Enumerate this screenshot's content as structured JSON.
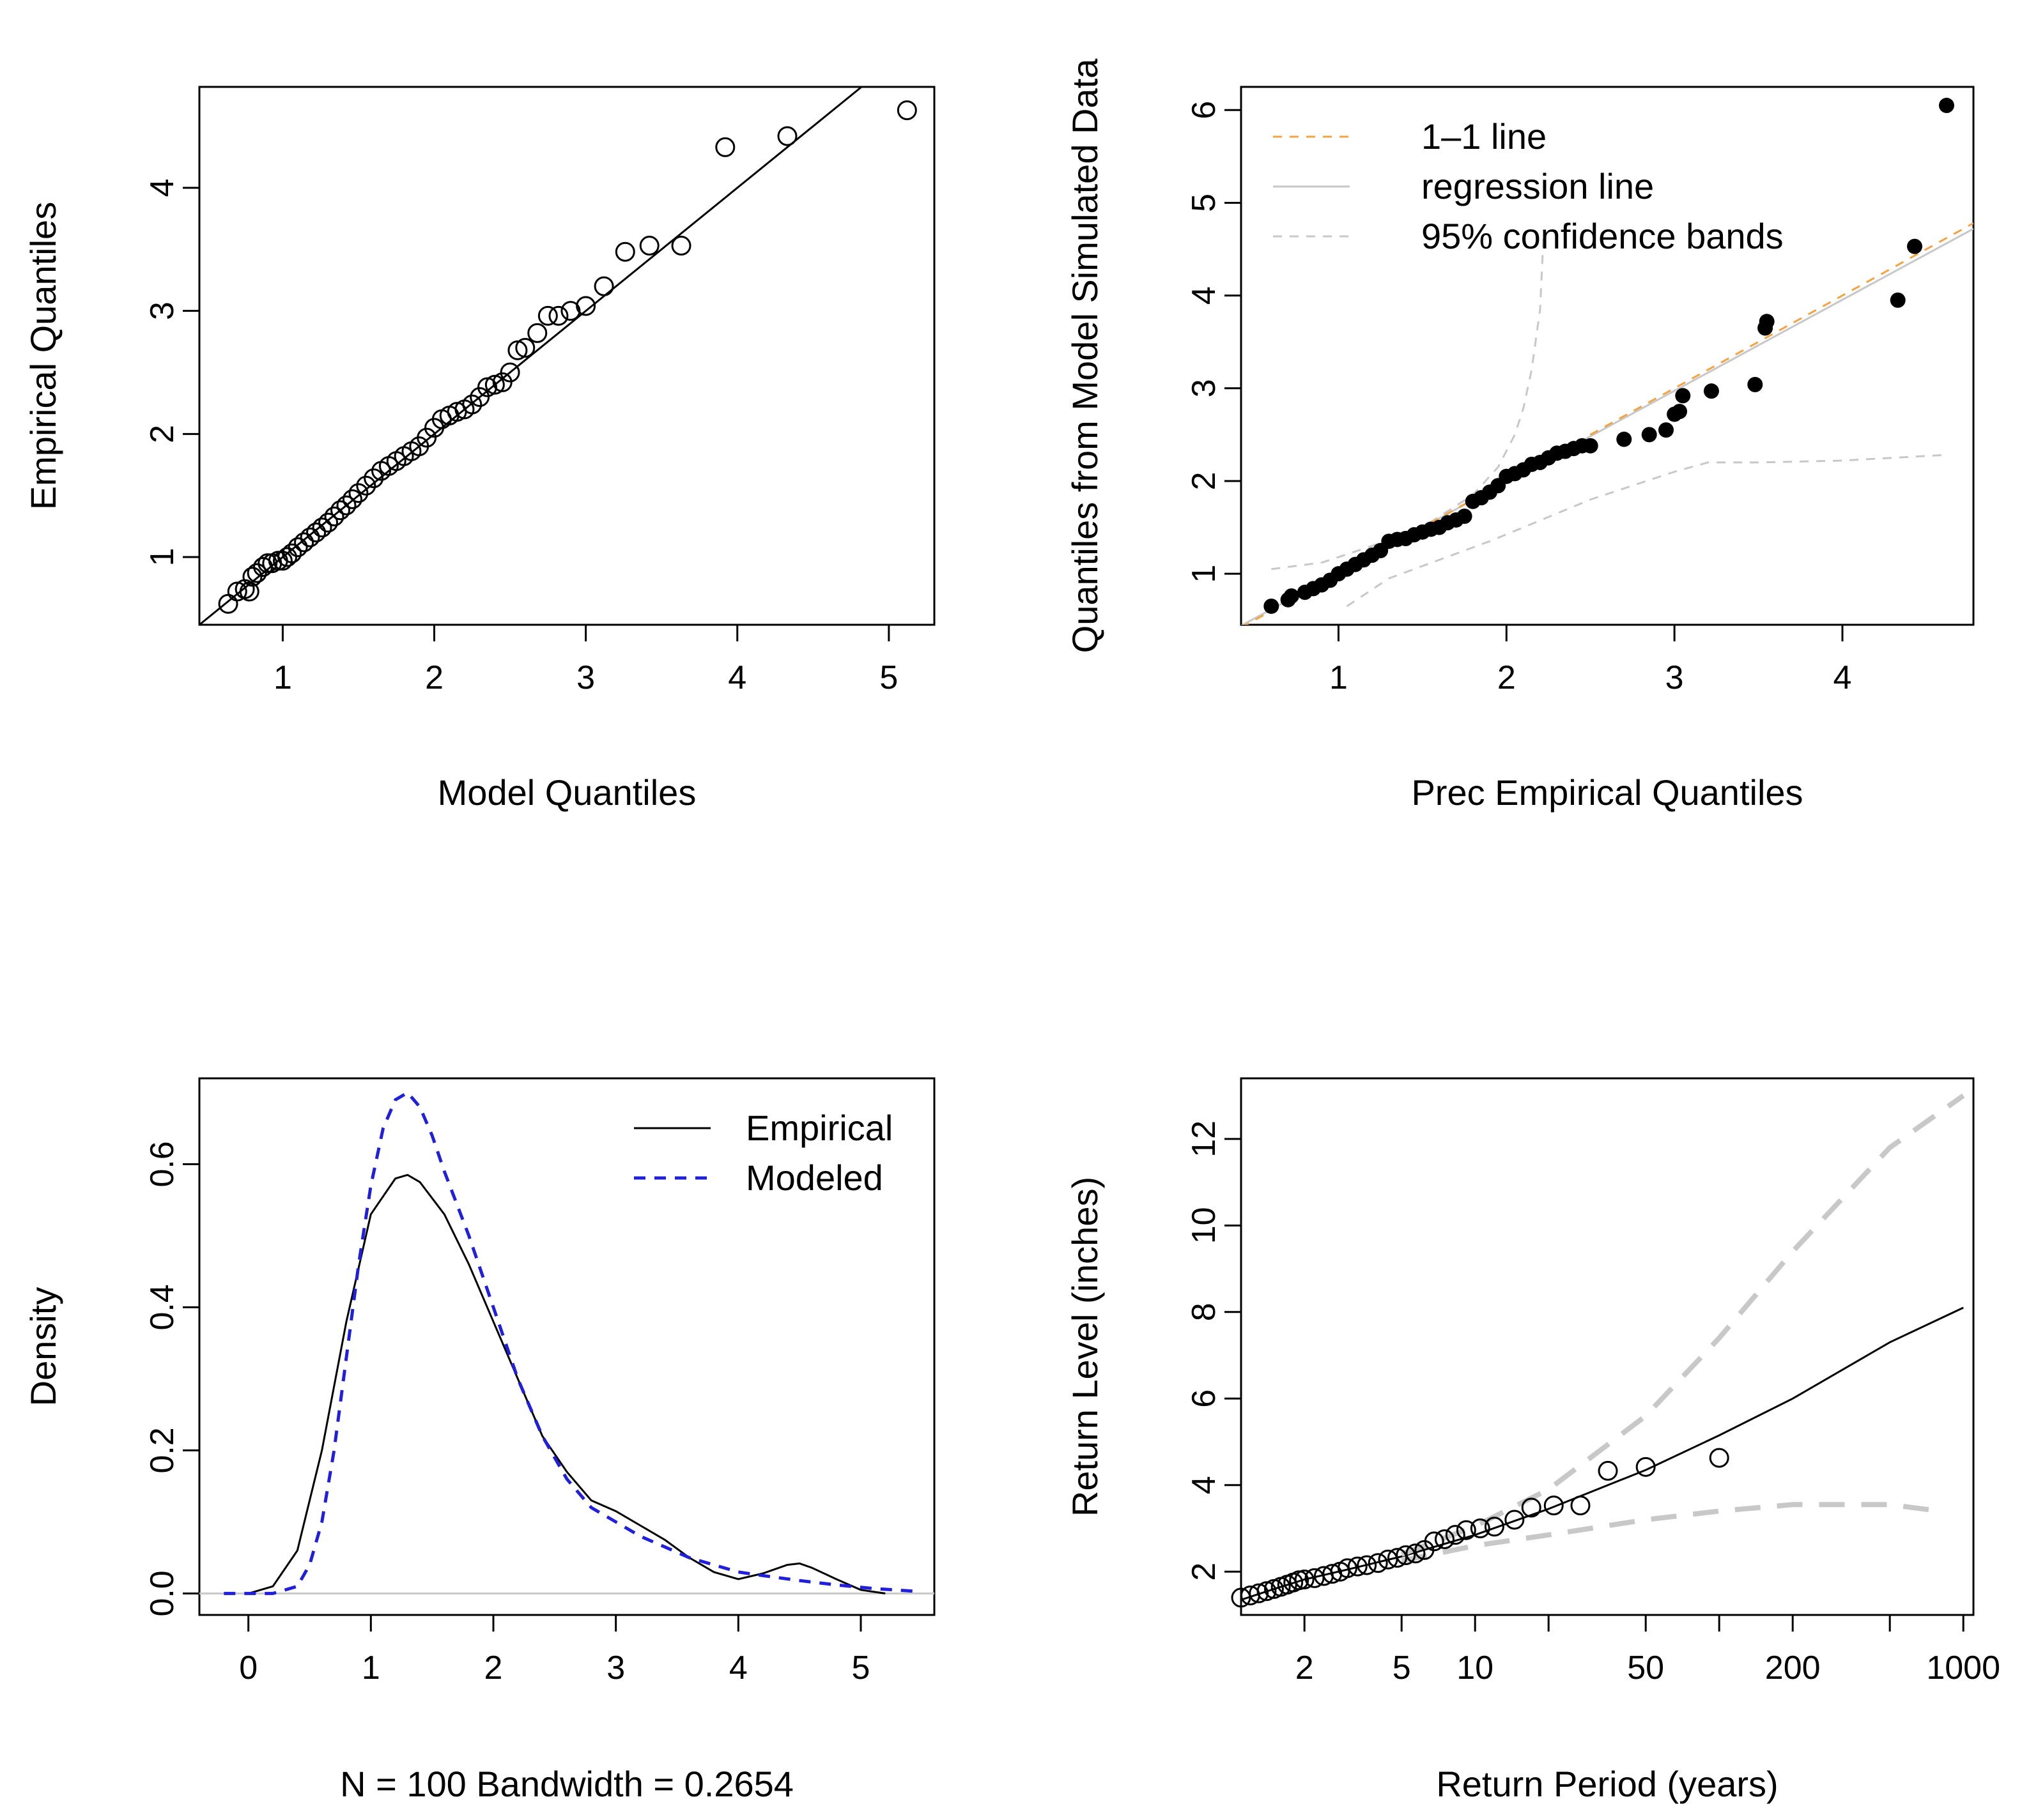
{
  "chart_data": [
    {
      "type": "scatter",
      "xlabel": "Model Quantiles",
      "ylabel": "Empirical Quantiles",
      "xlim": [
        0.45,
        5.3
      ],
      "ylim": [
        0.45,
        4.82
      ],
      "xticks": [
        1,
        2,
        3,
        4,
        5
      ],
      "yticks": [
        1,
        2,
        3,
        4
      ],
      "reference_line": {
        "x": [
          0.45,
          4.82
        ],
        "y": [
          0.45,
          4.82
        ]
      },
      "points": [
        [
          0.64,
          0.62
        ],
        [
          0.7,
          0.72
        ],
        [
          0.75,
          0.74
        ],
        [
          0.78,
          0.72
        ],
        [
          0.8,
          0.84
        ],
        [
          0.83,
          0.87
        ],
        [
          0.87,
          0.92
        ],
        [
          0.9,
          0.95
        ],
        [
          0.93,
          0.95
        ],
        [
          0.97,
          0.97
        ],
        [
          1.0,
          0.97
        ],
        [
          1.03,
          1.0
        ],
        [
          1.06,
          1.03
        ],
        [
          1.1,
          1.08
        ],
        [
          1.14,
          1.12
        ],
        [
          1.18,
          1.16
        ],
        [
          1.22,
          1.2
        ],
        [
          1.26,
          1.24
        ],
        [
          1.3,
          1.28
        ],
        [
          1.34,
          1.33
        ],
        [
          1.38,
          1.38
        ],
        [
          1.42,
          1.42
        ],
        [
          1.46,
          1.47
        ],
        [
          1.5,
          1.52
        ],
        [
          1.55,
          1.58
        ],
        [
          1.6,
          1.64
        ],
        [
          1.65,
          1.7
        ],
        [
          1.7,
          1.74
        ],
        [
          1.75,
          1.78
        ],
        [
          1.8,
          1.82
        ],
        [
          1.85,
          1.86
        ],
        [
          1.9,
          1.9
        ],
        [
          1.95,
          1.97
        ],
        [
          2.0,
          2.05
        ],
        [
          2.05,
          2.12
        ],
        [
          2.1,
          2.15
        ],
        [
          2.15,
          2.18
        ],
        [
          2.2,
          2.2
        ],
        [
          2.25,
          2.24
        ],
        [
          2.3,
          2.3
        ],
        [
          2.35,
          2.38
        ],
        [
          2.4,
          2.4
        ],
        [
          2.45,
          2.42
        ],
        [
          2.5,
          2.5
        ],
        [
          2.55,
          2.68
        ],
        [
          2.6,
          2.7
        ],
        [
          2.68,
          2.82
        ],
        [
          2.75,
          2.96
        ],
        [
          2.82,
          2.96
        ],
        [
          2.9,
          3.0
        ],
        [
          3.0,
          3.04
        ],
        [
          3.12,
          3.2
        ],
        [
          3.26,
          3.48
        ],
        [
          3.42,
          3.53
        ],
        [
          3.63,
          3.53
        ],
        [
          3.92,
          4.33
        ],
        [
          4.33,
          4.42
        ],
        [
          5.12,
          4.63
        ]
      ]
    },
    {
      "type": "scatter",
      "xlabel": "Prec Empirical Quantiles",
      "ylabel": "Quantiles from Model Simulated Data",
      "xlim": [
        0.42,
        4.78
      ],
      "ylim": [
        0.45,
        6.25
      ],
      "xticks": [
        1,
        2,
        3,
        4
      ],
      "yticks": [
        1,
        2,
        3,
        4,
        5,
        6
      ],
      "legend": {
        "position": "top-left",
        "entries": [
          {
            "label": "1–1 line",
            "color": "#f4a340",
            "style": "dashed"
          },
          {
            "label": "regression line",
            "color": "#c8c8c8",
            "style": "solid"
          },
          {
            "label": "95% confidence bands",
            "color": "#c8c8c8",
            "style": "dashed"
          }
        ]
      },
      "one_to_one_line": {
        "x": [
          0.42,
          4.78
        ],
        "y": [
          0.42,
          4.78
        ]
      },
      "regression_line": {
        "x": [
          0.42,
          4.78
        ],
        "y": [
          0.44,
          4.72
        ]
      },
      "upper_band": {
        "x": [
          0.6,
          0.9,
          1.2,
          1.5,
          1.8,
          1.95,
          2.05,
          2.1,
          2.15,
          2.2,
          2.22
        ],
        "y": [
          1.05,
          1.12,
          1.3,
          1.5,
          1.85,
          2.15,
          2.5,
          2.78,
          3.2,
          3.85,
          4.62
        ]
      },
      "lower_band": {
        "x": [
          1.05,
          1.3,
          1.6,
          1.9,
          2.1,
          2.5,
          3.0,
          3.2,
          3.5,
          4.0,
          4.6
        ],
        "y": [
          0.65,
          0.95,
          1.15,
          1.35,
          1.5,
          1.8,
          2.1,
          2.2,
          2.2,
          2.22,
          2.28
        ]
      },
      "points": [
        [
          0.6,
          0.65
        ],
        [
          0.7,
          0.72
        ],
        [
          0.72,
          0.76
        ],
        [
          0.8,
          0.8
        ],
        [
          0.85,
          0.84
        ],
        [
          0.9,
          0.88
        ],
        [
          0.95,
          0.93
        ],
        [
          1.0,
          1.0
        ],
        [
          1.05,
          1.05
        ],
        [
          1.1,
          1.1
        ],
        [
          1.15,
          1.15
        ],
        [
          1.2,
          1.2
        ],
        [
          1.25,
          1.25
        ],
        [
          1.3,
          1.35
        ],
        [
          1.35,
          1.37
        ],
        [
          1.4,
          1.38
        ],
        [
          1.45,
          1.42
        ],
        [
          1.5,
          1.45
        ],
        [
          1.55,
          1.48
        ],
        [
          1.6,
          1.5
        ],
        [
          1.65,
          1.55
        ],
        [
          1.7,
          1.58
        ],
        [
          1.75,
          1.62
        ],
        [
          1.8,
          1.78
        ],
        [
          1.85,
          1.82
        ],
        [
          1.9,
          1.88
        ],
        [
          1.95,
          1.95
        ],
        [
          2.0,
          2.05
        ],
        [
          2.05,
          2.08
        ],
        [
          2.1,
          2.12
        ],
        [
          2.15,
          2.18
        ],
        [
          2.2,
          2.2
        ],
        [
          2.25,
          2.25
        ],
        [
          2.3,
          2.3
        ],
        [
          2.35,
          2.32
        ],
        [
          2.4,
          2.35
        ],
        [
          2.45,
          2.38
        ],
        [
          2.5,
          2.38
        ],
        [
          2.7,
          2.45
        ],
        [
          2.85,
          2.5
        ],
        [
          2.95,
          2.55
        ],
        [
          3.0,
          2.72
        ],
        [
          3.03,
          2.75
        ],
        [
          3.05,
          2.92
        ],
        [
          3.22,
          2.97
        ],
        [
          3.48,
          3.04
        ],
        [
          3.54,
          3.65
        ],
        [
          3.55,
          3.72
        ],
        [
          4.33,
          3.95
        ],
        [
          4.43,
          4.53
        ],
        [
          4.62,
          6.05
        ]
      ]
    },
    {
      "type": "line",
      "xlabel": "N = 100   Bandwidth = 0.2654",
      "ylabel": "Density",
      "xlim": [
        -0.4,
        5.6
      ],
      "ylim": [
        -0.03,
        0.72
      ],
      "xticks": [
        0,
        1,
        2,
        3,
        4,
        5
      ],
      "yticks": [
        "0.0",
        "0.2",
        "0.4",
        "0.6"
      ],
      "legend": {
        "position": "top-right",
        "entries": [
          {
            "label": "Empirical",
            "color": "#000000",
            "style": "solid"
          },
          {
            "label": "Modeled",
            "color": "#1f1fdc",
            "style": "dashed"
          }
        ]
      },
      "series": [
        {
          "name": "Empirical",
          "color": "#000000",
          "x": [
            0.0,
            0.2,
            0.4,
            0.6,
            0.8,
            1.0,
            1.2,
            1.3,
            1.4,
            1.6,
            1.8,
            2.0,
            2.2,
            2.4,
            2.6,
            2.8,
            3.0,
            3.2,
            3.4,
            3.6,
            3.8,
            4.0,
            4.2,
            4.4,
            4.5,
            4.6,
            4.8,
            5.0,
            5.2
          ],
          "y": [
            0.0,
            0.01,
            0.06,
            0.2,
            0.38,
            0.53,
            0.58,
            0.585,
            0.575,
            0.53,
            0.46,
            0.38,
            0.3,
            0.22,
            0.17,
            0.13,
            0.115,
            0.095,
            0.075,
            0.05,
            0.03,
            0.02,
            0.028,
            0.04,
            0.042,
            0.036,
            0.02,
            0.005,
            0.0
          ]
        },
        {
          "name": "Modeled",
          "color": "#1f1fdc",
          "x": [
            -0.2,
            0.2,
            0.4,
            0.5,
            0.6,
            0.7,
            0.8,
            0.9,
            1.0,
            1.1,
            1.2,
            1.3,
            1.4,
            1.5,
            1.6,
            1.8,
            2.0,
            2.2,
            2.4,
            2.6,
            2.8,
            3.0,
            3.2,
            3.4,
            3.6,
            3.8,
            4.0,
            4.2,
            4.5,
            4.8,
            5.1,
            5.45
          ],
          "y": [
            0.0,
            0.0,
            0.01,
            0.04,
            0.1,
            0.2,
            0.33,
            0.46,
            0.57,
            0.65,
            0.69,
            0.7,
            0.68,
            0.64,
            0.59,
            0.5,
            0.4,
            0.3,
            0.22,
            0.16,
            0.12,
            0.1,
            0.08,
            0.065,
            0.05,
            0.04,
            0.03,
            0.025,
            0.018,
            0.012,
            0.007,
            0.003
          ]
        }
      ]
    },
    {
      "type": "line",
      "xlabel": "Return Period (years)",
      "ylabel": "Return Level (inches)",
      "x_scale": "log",
      "xlim": [
        1.1,
        1100
      ],
      "ylim": [
        1.0,
        13.4
      ],
      "xticks": [
        2,
        5,
        10,
        50,
        200,
        1000
      ],
      "minor_xticks": [
        20,
        100,
        500
      ],
      "yticks": [
        2,
        4,
        6,
        8,
        10,
        12
      ],
      "series": [
        {
          "name": "",
          "color": "#000000",
          "style": "solid",
          "x": [
            1.1,
            1.5,
            2,
            3,
            5,
            10,
            20,
            50,
            100,
            200,
            500,
            1000
          ],
          "y": [
            1.35,
            1.6,
            1.82,
            2.05,
            2.35,
            2.85,
            3.45,
            4.35,
            5.15,
            6.0,
            7.3,
            8.1
          ]
        },
        {
          "name": "",
          "color": "#c8c8c8",
          "style": "dashed",
          "x": [
            5,
            10,
            20,
            50,
            100,
            200,
            500,
            1000
          ],
          "y": [
            2.4,
            3.05,
            3.9,
            5.6,
            7.4,
            9.4,
            11.8,
            13.0
          ]
        },
        {
          "name": "",
          "color": "#c8c8c8",
          "style": "dashed",
          "x": [
            5,
            10,
            20,
            50,
            100,
            200,
            500,
            800
          ],
          "y": [
            2.25,
            2.6,
            2.85,
            3.2,
            3.4,
            3.55,
            3.55,
            3.4
          ]
        }
      ],
      "points": [
        [
          1.1,
          1.4
        ],
        [
          1.2,
          1.45
        ],
        [
          1.3,
          1.5
        ],
        [
          1.4,
          1.55
        ],
        [
          1.5,
          1.6
        ],
        [
          1.6,
          1.65
        ],
        [
          1.7,
          1.7
        ],
        [
          1.8,
          1.75
        ],
        [
          1.9,
          1.8
        ],
        [
          2.0,
          1.82
        ],
        [
          2.2,
          1.85
        ],
        [
          2.4,
          1.9
        ],
        [
          2.6,
          1.95
        ],
        [
          2.8,
          2.0
        ],
        [
          3.0,
          2.08
        ],
        [
          3.3,
          2.12
        ],
        [
          3.6,
          2.15
        ],
        [
          4.0,
          2.2
        ],
        [
          4.4,
          2.28
        ],
        [
          4.8,
          2.32
        ],
        [
          5.2,
          2.38
        ],
        [
          5.7,
          2.42
        ],
        [
          6.2,
          2.5
        ],
        [
          6.8,
          2.7
        ],
        [
          7.5,
          2.75
        ],
        [
          8.3,
          2.85
        ],
        [
          9.2,
          2.96
        ],
        [
          10.5,
          3.0
        ],
        [
          12,
          3.04
        ],
        [
          14.5,
          3.2
        ],
        [
          17,
          3.48
        ],
        [
          21,
          3.53
        ],
        [
          27,
          3.53
        ],
        [
          35,
          4.33
        ],
        [
          50,
          4.42
        ],
        [
          100,
          4.63
        ]
      ]
    }
  ]
}
